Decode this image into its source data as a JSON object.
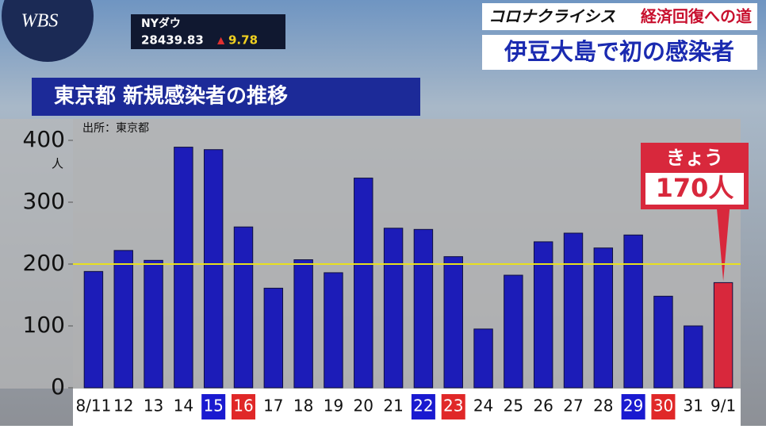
{
  "logo": "WBS",
  "ticker": {
    "name": "NYダウ",
    "value": "28439.83",
    "arrow": "▲",
    "change": "9.78"
  },
  "corner": {
    "series_title": "コロナクライシス",
    "series_subtitle": "経済回復への道",
    "headline": "伊豆大島で初の感染者"
  },
  "chart_data": {
    "type": "bar",
    "title": "東京都 新規感染者の推移",
    "source": "出所：東京都",
    "y_unit": "人",
    "categories": [
      "8/11",
      "12",
      "13",
      "14",
      "15",
      "16",
      "17",
      "18",
      "19",
      "20",
      "21",
      "22",
      "23",
      "24",
      "25",
      "26",
      "27",
      "28",
      "29",
      "30",
      "31",
      "9/1"
    ],
    "label_backgrounds": [
      null,
      null,
      null,
      null,
      "#1a1ad0",
      "#e02828",
      null,
      null,
      null,
      null,
      null,
      "#1a1ad0",
      "#e02828",
      null,
      null,
      null,
      null,
      null,
      "#1a1ad0",
      "#e02828",
      null,
      null
    ],
    "values": [
      188,
      222,
      206,
      389,
      385,
      260,
      161,
      207,
      186,
      339,
      258,
      256,
      212,
      95,
      182,
      236,
      250,
      226,
      247,
      148,
      100,
      170
    ],
    "value_labels": [
      null,
      null,
      null,
      null,
      null,
      null,
      null,
      null,
      null,
      null,
      null,
      null,
      null,
      null,
      null,
      null,
      null,
      null,
      null,
      null,
      null,
      "170人"
    ],
    "colors": [
      "#1c1cb8",
      "#1c1cb8",
      "#1c1cb8",
      "#1c1cb8",
      "#1c1cb8",
      "#1c1cb8",
      "#1c1cb8",
      "#1c1cb8",
      "#1c1cb8",
      "#1c1cb8",
      "#1c1cb8",
      "#1c1cb8",
      "#1c1cb8",
      "#1c1cb8",
      "#1c1cb8",
      "#1c1cb8",
      "#1c1cb8",
      "#1c1cb8",
      "#1c1cb8",
      "#1c1cb8",
      "#1c1cb8",
      "#d8283c"
    ],
    "callout": "きょう",
    "reference_line": {
      "value": 200,
      "color": "#e8e020"
    },
    "ylim": [
      0,
      400
    ],
    "yticks": [
      0,
      100,
      200,
      300,
      400
    ],
    "grid": false
  }
}
